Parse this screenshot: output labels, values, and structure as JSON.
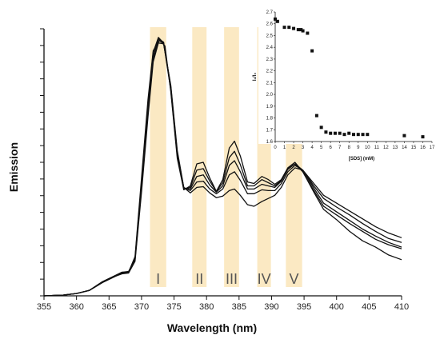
{
  "chart_data": [
    {
      "type": "line",
      "xlabel": "Wavelength (nm)",
      "ylabel": "Emission",
      "xlim": [
        355,
        410
      ],
      "x_ticks": [
        355,
        360,
        365,
        370,
        375,
        380,
        385,
        390,
        395,
        400,
        405,
        410
      ],
      "y_tick_count": 17,
      "grid": false,
      "legend": "none",
      "bands": [
        {
          "label": "I",
          "range": [
            371.3,
            373.8
          ]
        },
        {
          "label": "II",
          "range": [
            377.8,
            380.0
          ]
        },
        {
          "label": "III",
          "range": [
            382.7,
            385.0
          ]
        },
        {
          "label": "IV",
          "range": [
            387.8,
            389.9
          ]
        },
        {
          "label": "V",
          "range": [
            392.2,
            394.7
          ]
        }
      ],
      "band_color": "#fbe9c3",
      "line_color": "#111111",
      "series": [
        {
          "values": [
            [
              355,
              0
            ],
            [
              358,
              1
            ],
            [
              360,
              3
            ],
            [
              362,
              7
            ],
            [
              364,
              17
            ],
            [
              366,
              25
            ],
            [
              367,
              29
            ],
            [
              368,
              30
            ],
            [
              369,
              50
            ],
            [
              370,
              150
            ],
            [
              371,
              250
            ],
            [
              371.8,
              312
            ],
            [
              372.8,
              326
            ],
            [
              373.6,
              318
            ],
            [
              374.5,
              260
            ],
            [
              375.5,
              175
            ],
            [
              376.5,
              135
            ],
            [
              377.5,
              140
            ],
            [
              378.5,
              168
            ],
            [
              379.5,
              170
            ],
            [
              380.5,
              150
            ],
            [
              381.5,
              133
            ],
            [
              382.5,
              148
            ],
            [
              383.5,
              188
            ],
            [
              384.3,
              197
            ],
            [
              385.2,
              178
            ],
            [
              386.3,
              145
            ],
            [
              387.3,
              143
            ],
            [
              388.5,
              152
            ],
            [
              389.5,
              148
            ],
            [
              390.5,
              142
            ],
            [
              391.5,
              148
            ],
            [
              392.5,
              163
            ],
            [
              393.6,
              170
            ],
            [
              394.8,
              158
            ],
            [
              396.5,
              132
            ],
            [
              398,
              110
            ],
            [
              400,
              97
            ],
            [
              402,
              82
            ],
            [
              404,
              70
            ],
            [
              406,
              62
            ],
            [
              408,
              52
            ],
            [
              410,
              46
            ]
          ]
        },
        {
          "values": [
            [
              355,
              0
            ],
            [
              358,
              1
            ],
            [
              360,
              3
            ],
            [
              362,
              7
            ],
            [
              364,
              18
            ],
            [
              366,
              26
            ],
            [
              367,
              30
            ],
            [
              368,
              30
            ],
            [
              369,
              48
            ],
            [
              370,
              145
            ],
            [
              371,
              245
            ],
            [
              371.8,
              310
            ],
            [
              372.6,
              329
            ],
            [
              373.4,
              322
            ],
            [
              374.5,
              262
            ],
            [
              375.5,
              178
            ],
            [
              376.5,
              136
            ],
            [
              377.5,
              138
            ],
            [
              378.5,
              160
            ],
            [
              379.5,
              162
            ],
            [
              380.5,
              146
            ],
            [
              381.5,
              133
            ],
            [
              382.5,
              144
            ],
            [
              383.5,
              176
            ],
            [
              384.3,
              184
            ],
            [
              385.2,
              167
            ],
            [
              386.3,
              140
            ],
            [
              387.3,
              140
            ],
            [
              388.5,
              148
            ],
            [
              389.5,
              144
            ],
            [
              390.5,
              140
            ],
            [
              391.5,
              147
            ],
            [
              392.5,
              162
            ],
            [
              393.6,
              168
            ],
            [
              394.8,
              158
            ],
            [
              396.5,
              134
            ],
            [
              398,
              114
            ],
            [
              400,
              103
            ],
            [
              402,
              92
            ],
            [
              404,
              82
            ],
            [
              406,
              72
            ],
            [
              408,
              65
            ],
            [
              410,
              60
            ]
          ]
        },
        {
          "values": [
            [
              355,
              0
            ],
            [
              358,
              1
            ],
            [
              360,
              3
            ],
            [
              362,
              7
            ],
            [
              364,
              18
            ],
            [
              366,
              26
            ],
            [
              367,
              30
            ],
            [
              368,
              31
            ],
            [
              369,
              47
            ],
            [
              370,
              140
            ],
            [
              371,
              238
            ],
            [
              371.8,
              305
            ],
            [
              372.6,
              327
            ],
            [
              373.4,
              323
            ],
            [
              374.5,
              265
            ],
            [
              375.5,
              180
            ],
            [
              376.5,
              137
            ],
            [
              377.5,
              136
            ],
            [
              378.5,
              152
            ],
            [
              379.5,
              154
            ],
            [
              380.5,
              141
            ],
            [
              381.5,
              132
            ],
            [
              382.5,
              140
            ],
            [
              383.5,
              166
            ],
            [
              384.3,
              172
            ],
            [
              385.2,
              158
            ],
            [
              386.3,
              136
            ],
            [
              387.3,
              136
            ],
            [
              388.5,
              142
            ],
            [
              389.5,
              140
            ],
            [
              390.5,
              138
            ],
            [
              391.5,
              146
            ],
            [
              392.5,
              161
            ],
            [
              393.6,
              168
            ],
            [
              394.8,
              160
            ],
            [
              396.5,
              137
            ],
            [
              398,
              118
            ],
            [
              400,
              107
            ],
            [
              402,
              96
            ],
            [
              404,
              85
            ],
            [
              406,
              76
            ],
            [
              408,
              68
            ],
            [
              410,
              62
            ]
          ]
        },
        {
          "values": [
            [
              355,
              0
            ],
            [
              358,
              1
            ],
            [
              360,
              3
            ],
            [
              362,
              7
            ],
            [
              364,
              17
            ],
            [
              366,
              25
            ],
            [
              367,
              29
            ],
            [
              368,
              30
            ],
            [
              369,
              46
            ],
            [
              370,
              138
            ],
            [
              371,
              235
            ],
            [
              371.8,
              302
            ],
            [
              372.6,
              325
            ],
            [
              373.4,
              322
            ],
            [
              374.5,
              266
            ],
            [
              375.5,
              182
            ],
            [
              376.5,
              138
            ],
            [
              377.5,
              134
            ],
            [
              378.5,
              145
            ],
            [
              379.5,
              146
            ],
            [
              380.5,
              136
            ],
            [
              381.5,
              130
            ],
            [
              382.5,
              136
            ],
            [
              383.5,
              154
            ],
            [
              384.3,
              158
            ],
            [
              385.2,
              147
            ],
            [
              386.3,
              130
            ],
            [
              387.3,
              130
            ],
            [
              388.5,
              135
            ],
            [
              389.5,
              134
            ],
            [
              390.5,
              134
            ],
            [
              391.5,
              143
            ],
            [
              392.5,
              158
            ],
            [
              393.6,
              166
            ],
            [
              394.8,
              160
            ],
            [
              396.5,
              140
            ],
            [
              398,
              124
            ],
            [
              400,
              113
            ],
            [
              402,
              103
            ],
            [
              404,
              92
            ],
            [
              406,
              82
            ],
            [
              408,
              73
            ],
            [
              410,
              68
            ]
          ]
        },
        {
          "values": [
            [
              355,
              0
            ],
            [
              358,
              1
            ],
            [
              360,
              3
            ],
            [
              362,
              7
            ],
            [
              364,
              17
            ],
            [
              366,
              25
            ],
            [
              367,
              28
            ],
            [
              368,
              29
            ],
            [
              369,
              44
            ],
            [
              370,
              132
            ],
            [
              371,
              228
            ],
            [
              371.8,
              298
            ],
            [
              372.6,
              322
            ],
            [
              373.4,
              321
            ],
            [
              374.5,
              268
            ],
            [
              375.5,
              185
            ],
            [
              376.5,
              138
            ],
            [
              377.5,
              131
            ],
            [
              378.5,
              138
            ],
            [
              379.5,
              139
            ],
            [
              380.5,
              131
            ],
            [
              381.5,
              125
            ],
            [
              382.5,
              127
            ],
            [
              383.5,
              134
            ],
            [
              384.3,
              136
            ],
            [
              385.2,
              128
            ],
            [
              386.3,
              116
            ],
            [
              387.3,
              114
            ],
            [
              388.5,
              120
            ],
            [
              389.5,
              124
            ],
            [
              390.5,
              128
            ],
            [
              391.5,
              138
            ],
            [
              392.5,
              154
            ],
            [
              393.6,
              163
            ],
            [
              394.8,
              160
            ],
            [
              396.5,
              143
            ],
            [
              398,
              128
            ],
            [
              400,
              118
            ],
            [
              402,
              108
            ],
            [
              404,
              98
            ],
            [
              406,
              88
            ],
            [
              408,
              80
            ],
            [
              410,
              74
            ]
          ]
        }
      ]
    },
    {
      "type": "scatter",
      "xlabel": "[SDS] (mM)",
      "ylabel": "I₁/I₃",
      "xlim": [
        0,
        17
      ],
      "ylim": [
        1.6,
        2.7
      ],
      "x_ticks": [
        0,
        1,
        2,
        3,
        4,
        5,
        6,
        7,
        8,
        9,
        10,
        11,
        12,
        13,
        14,
        15,
        16,
        17
      ],
      "y_ticks": [
        1.6,
        1.7,
        1.8,
        1.9,
        2.0,
        2.1,
        2.2,
        2.3,
        2.4,
        2.5,
        2.6,
        2.7
      ],
      "marker_color": "#111111",
      "x": [
        0.0,
        0.25,
        1.0,
        1.5,
        2.0,
        2.5,
        2.8,
        3.0,
        3.5,
        4.0,
        4.5,
        5.0,
        5.5,
        6.0,
        6.5,
        7.0,
        7.5,
        8.0,
        8.5,
        9.0,
        9.5,
        10.0,
        14.0,
        16.0
      ],
      "y": [
        2.64,
        2.62,
        2.57,
        2.57,
        2.56,
        2.55,
        2.55,
        2.54,
        2.52,
        2.37,
        1.82,
        1.72,
        1.68,
        1.67,
        1.67,
        1.67,
        1.66,
        1.67,
        1.66,
        1.66,
        1.66,
        1.66,
        1.65,
        1.64
      ]
    }
  ]
}
